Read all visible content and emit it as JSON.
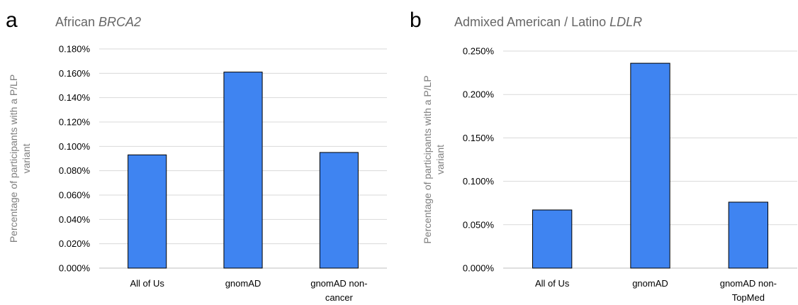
{
  "chart_data": [
    {
      "type": "bar",
      "panel_letter": "a",
      "title_prefix": "African ",
      "title_italic": "BRCA2",
      "ylabel_lines": [
        "Percentage of participants with a P/LP",
        "variant"
      ],
      "categories": [
        [
          "All of Us"
        ],
        [
          "gnomAD"
        ],
        [
          "gnomAD non-",
          "cancer"
        ]
      ],
      "values": [
        0.093,
        0.161,
        0.095
      ],
      "ylim": [
        0,
        0.18
      ],
      "yticks": [
        0,
        0.02,
        0.04,
        0.06,
        0.08,
        0.1,
        0.12,
        0.14,
        0.16,
        0.18
      ],
      "ytick_labels": [
        "0.000%",
        "0.020%",
        "0.040%",
        "0.060%",
        "0.080%",
        "0.100%",
        "0.120%",
        "0.140%",
        "0.160%",
        "0.180%"
      ],
      "grid": true,
      "bar_color": "#3f84f1"
    },
    {
      "type": "bar",
      "panel_letter": "b",
      "title_prefix": "Admixed American / Latino ",
      "title_italic": "LDLR",
      "ylabel_lines": [
        "Percentage of participants with a P/LP",
        "variant"
      ],
      "categories": [
        [
          "All of Us"
        ],
        [
          "gnomAD"
        ],
        [
          "gnomAD non-",
          "TopMed"
        ]
      ],
      "values": [
        0.067,
        0.236,
        0.076
      ],
      "ylim": [
        0,
        0.25
      ],
      "yticks": [
        0,
        0.05,
        0.1,
        0.15,
        0.2,
        0.25
      ],
      "ytick_labels": [
        "0.000%",
        "0.050%",
        "0.100%",
        "0.150%",
        "0.200%",
        "0.250%"
      ],
      "grid": true,
      "bar_color": "#3f84f1"
    }
  ]
}
